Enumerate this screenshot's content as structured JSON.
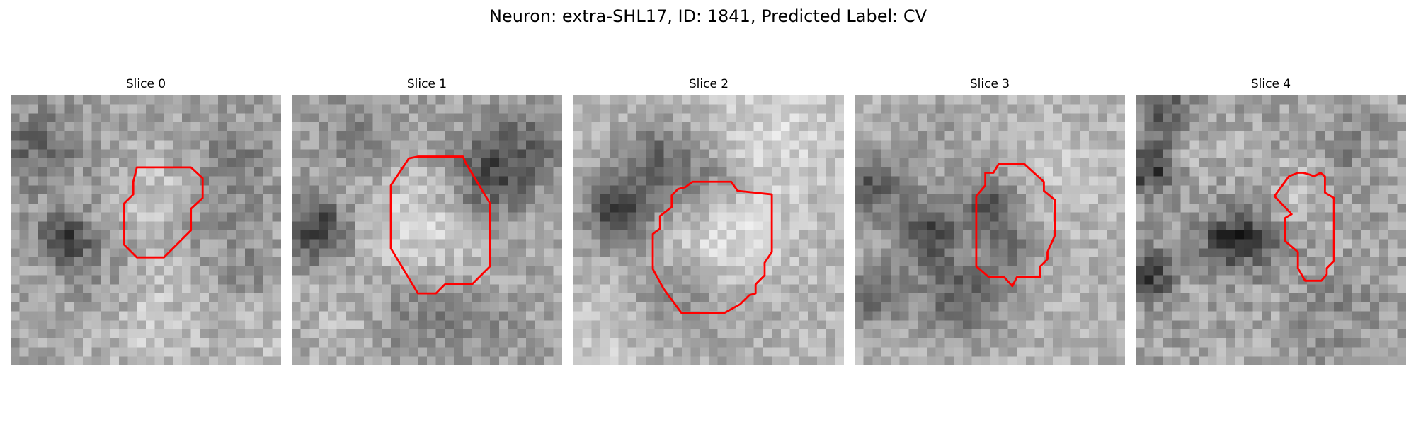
{
  "figure": {
    "title": "Neuron: extra-SHL17, ID: 1841, Predicted Label: CV",
    "contour_color": "#ff0000"
  },
  "panels": [
    {
      "title": "Slice 0"
    },
    {
      "title": "Slice 1"
    },
    {
      "title": "Slice 2"
    },
    {
      "title": "Slice 3"
    },
    {
      "title": "Slice 4"
    }
  ]
}
